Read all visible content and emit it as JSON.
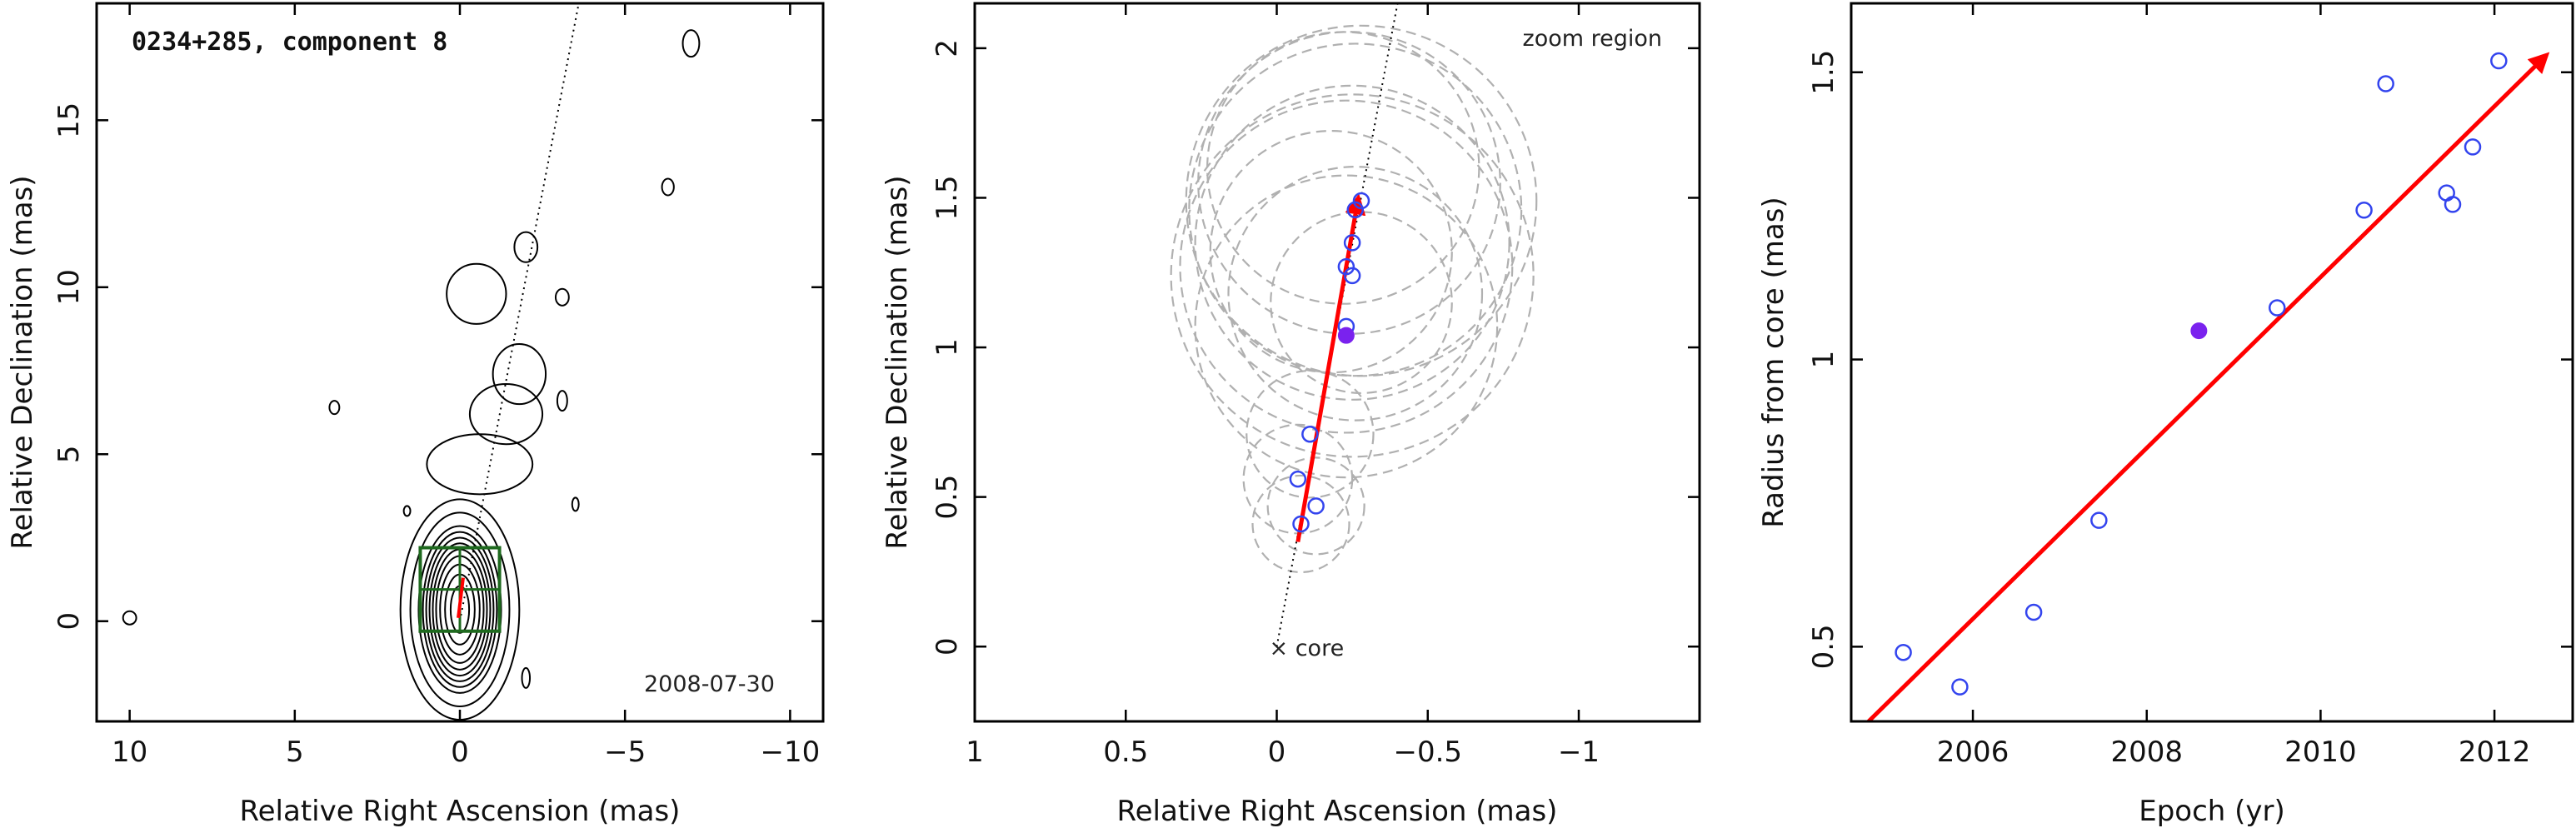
{
  "chart_data": [
    {
      "type": "contour",
      "panel": "left",
      "title": "0234+285, component 8",
      "date_label": "2008-07-30",
      "xlabel": "Relative Right Ascension (mas)",
      "ylabel": "Relative Declination (mas)",
      "xlim": [
        11,
        -11
      ],
      "ylim": [
        -3,
        18.5
      ],
      "xticks": [
        10,
        5,
        0,
        -5,
        -10
      ],
      "yticks": [
        0,
        5,
        10,
        15
      ],
      "jet_axis": {
        "from": [
          0,
          0
        ],
        "to": [
          -3.6,
          18.5
        ]
      },
      "core_contours": {
        "center": [
          0,
          0.35
        ],
        "levels": [
          [
            0.28,
            0.7
          ],
          [
            0.45,
            1.05
          ],
          [
            0.6,
            1.35
          ],
          [
            0.72,
            1.6
          ],
          [
            0.82,
            1.8
          ],
          [
            0.92,
            1.98
          ],
          [
            1.02,
            2.15
          ],
          [
            1.12,
            2.32
          ],
          [
            1.25,
            2.5
          ],
          [
            1.5,
            2.9
          ],
          [
            1.8,
            3.3
          ]
        ]
      },
      "jet_contours": [
        {
          "center": [
            -0.6,
            4.7
          ],
          "rx": 1.6,
          "ry": 0.9
        },
        {
          "center": [
            -1.4,
            6.2
          ],
          "rx": 1.1,
          "ry": 0.9
        },
        {
          "center": [
            -1.8,
            7.4
          ],
          "rx": 0.8,
          "ry": 0.9
        },
        {
          "center": [
            -0.5,
            9.8
          ],
          "rx": 0.9,
          "ry": 0.9
        },
        {
          "center": [
            -2.0,
            11.2
          ],
          "rx": 0.35,
          "ry": 0.45
        },
        {
          "center": [
            -3.1,
            9.7
          ],
          "rx": 0.2,
          "ry": 0.25
        },
        {
          "center": [
            -3.1,
            6.6
          ],
          "rx": 0.15,
          "ry": 0.3
        },
        {
          "center": [
            -7.0,
            17.3
          ],
          "rx": 0.25,
          "ry": 0.4
        },
        {
          "center": [
            -6.3,
            13.0
          ],
          "rx": 0.18,
          "ry": 0.25
        },
        {
          "center": [
            10.0,
            0.1
          ],
          "rx": 0.2,
          "ry": 0.2
        },
        {
          "center": [
            3.8,
            6.4
          ],
          "rx": 0.15,
          "ry": 0.2
        },
        {
          "center": [
            -3.5,
            3.5
          ],
          "rx": 0.1,
          "ry": 0.2
        },
        {
          "center": [
            -2.0,
            -1.7
          ],
          "rx": 0.12,
          "ry": 0.3
        },
        {
          "center": [
            1.6,
            3.3
          ],
          "rx": 0.1,
          "ry": 0.15
        }
      ],
      "zoom_box": {
        "x": [
          1.2,
          -1.2
        ],
        "y": [
          -0.3,
          2.2
        ]
      },
      "colors": {
        "contour": "#000000",
        "zoom_box": "#1f6a1f",
        "arrow": "#ff0000"
      }
    },
    {
      "type": "scatter",
      "panel": "middle",
      "annotation": "zoom region",
      "core_label": "× core",
      "xlabel": "Relative Right Ascension (mas)",
      "ylabel": "Relative Declination (mas)",
      "xlim": [
        1.0,
        -1.4
      ],
      "ylim": [
        -0.25,
        2.15
      ],
      "xticks": [
        1,
        0.5,
        0,
        -0.5,
        -1
      ],
      "xtick_labels": [
        "1",
        "0.5",
        "0",
        "−0.5",
        "−1"
      ],
      "yticks": [
        0,
        0.5,
        1,
        1.5,
        2
      ],
      "points_open": [
        {
          "x": -0.28,
          "y": 1.49
        },
        {
          "x": -0.26,
          "y": 1.46
        },
        {
          "x": -0.25,
          "y": 1.35
        },
        {
          "x": -0.23,
          "y": 1.27
        },
        {
          "x": -0.25,
          "y": 1.24
        },
        {
          "x": -0.23,
          "y": 1.07
        },
        {
          "x": -0.11,
          "y": 0.71
        },
        {
          "x": -0.13,
          "y": 0.47
        },
        {
          "x": -0.07,
          "y": 0.56
        },
        {
          "x": -0.08,
          "y": 0.41
        }
      ],
      "points_filled": [
        {
          "x": -0.23,
          "y": 1.04
        }
      ],
      "uncertainty_circles": [
        {
          "x": -0.28,
          "y": 1.49,
          "r": 0.58
        },
        {
          "x": -0.26,
          "y": 1.46,
          "r": 0.55
        },
        {
          "x": -0.25,
          "y": 1.35,
          "r": 0.52
        },
        {
          "x": -0.23,
          "y": 1.27,
          "r": 0.55
        },
        {
          "x": -0.25,
          "y": 1.24,
          "r": 0.6
        },
        {
          "x": -0.23,
          "y": 1.07,
          "r": 0.5
        },
        {
          "x": -0.24,
          "y": 1.55,
          "r": 0.5
        },
        {
          "x": -0.22,
          "y": 1.6,
          "r": 0.45
        },
        {
          "x": -0.26,
          "y": 1.18,
          "r": 0.42
        },
        {
          "x": -0.18,
          "y": 1.32,
          "r": 0.4
        },
        {
          "x": -0.28,
          "y": 1.15,
          "r": 0.3
        },
        {
          "x": -0.11,
          "y": 0.71,
          "r": 0.21
        },
        {
          "x": -0.13,
          "y": 0.47,
          "r": 0.16
        },
        {
          "x": -0.07,
          "y": 0.56,
          "r": 0.18
        },
        {
          "x": -0.08,
          "y": 0.41,
          "r": 0.16
        }
      ],
      "jet_axis": {
        "from": [
          0,
          0
        ],
        "to": [
          -0.4,
          2.15
        ]
      },
      "arrow": {
        "from": [
          -0.07,
          0.35
        ],
        "to": [
          -0.27,
          1.5
        ]
      },
      "colors": {
        "open": "#3344ee",
        "filled": "#7a22ee",
        "arrow": "#ff0000",
        "circles": "#b0b0b0"
      }
    },
    {
      "type": "scatter",
      "panel": "right",
      "xlabel": "Epoch (yr)",
      "ylabel": "Radius from core (mas)",
      "xlim": [
        2004.6,
        2012.9
      ],
      "ylim": [
        0.37,
        1.62
      ],
      "xticks": [
        2006,
        2008,
        2010,
        2012
      ],
      "yticks": [
        0.5,
        1,
        1.5
      ],
      "points_open": [
        {
          "x": 2005.2,
          "y": 0.49
        },
        {
          "x": 2005.85,
          "y": 0.43
        },
        {
          "x": 2006.7,
          "y": 0.56
        },
        {
          "x": 2007.45,
          "y": 0.72
        },
        {
          "x": 2009.5,
          "y": 1.09
        },
        {
          "x": 2010.5,
          "y": 1.26
        },
        {
          "x": 2010.75,
          "y": 1.48
        },
        {
          "x": 2011.45,
          "y": 1.29
        },
        {
          "x": 2011.52,
          "y": 1.27
        },
        {
          "x": 2011.75,
          "y": 1.37
        },
        {
          "x": 2012.05,
          "y": 1.52
        }
      ],
      "points_filled": [
        {
          "x": 2008.6,
          "y": 1.05
        }
      ],
      "fit_line": {
        "from": [
          2004.8,
          0.37
        ],
        "to": [
          2012.6,
          1.53
        ]
      },
      "colors": {
        "open": "#3344ee",
        "filled": "#7a22ee",
        "fit": "#ff0000"
      }
    }
  ]
}
